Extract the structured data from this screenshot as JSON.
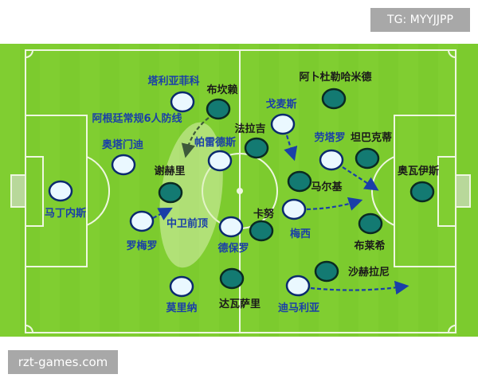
{
  "watermark_top": "TG: MYYJJPP",
  "watermark_bottom": "rzt-games.com",
  "colors": {
    "pitch": "#7ccb2e",
    "lines": "#eef7e0",
    "team_a_fill": "#eaf8ff",
    "team_a_stroke": "#0b2a6e",
    "team_a_label": "#1a3fa8",
    "team_b_fill": "#137a72",
    "team_b_stroke": "#0a2a22",
    "team_b_label": "#1a1a1a",
    "arrow": "#1a3fa8"
  },
  "annotations": {
    "defense_line": "阿根廷常规6人防线",
    "cb_push": "中卫前顶"
  },
  "team_a": [
    {
      "name": "塔利亚菲科"
    },
    {
      "name": "奥塔门迪"
    },
    {
      "name": "马丁内斯"
    },
    {
      "name": "罗梅罗"
    },
    {
      "name": "帕雷德斯"
    },
    {
      "name": "德保罗"
    },
    {
      "name": "莫里纳"
    },
    {
      "name": "戈麦斯"
    },
    {
      "name": "劳塔罗"
    },
    {
      "name": "梅西"
    },
    {
      "name": "迪马利亚"
    }
  ],
  "team_b": [
    {
      "name": "布坎赖"
    },
    {
      "name": "阿卜杜勒哈米德"
    },
    {
      "name": "法拉吉"
    },
    {
      "name": "坦巴克蒂"
    },
    {
      "name": "马尔基"
    },
    {
      "name": "奥瓦伊斯"
    },
    {
      "name": "谢赫里"
    },
    {
      "name": "卡努"
    },
    {
      "name": "布莱希"
    },
    {
      "name": "沙赫拉尼"
    },
    {
      "name": "达瓦萨里"
    }
  ]
}
